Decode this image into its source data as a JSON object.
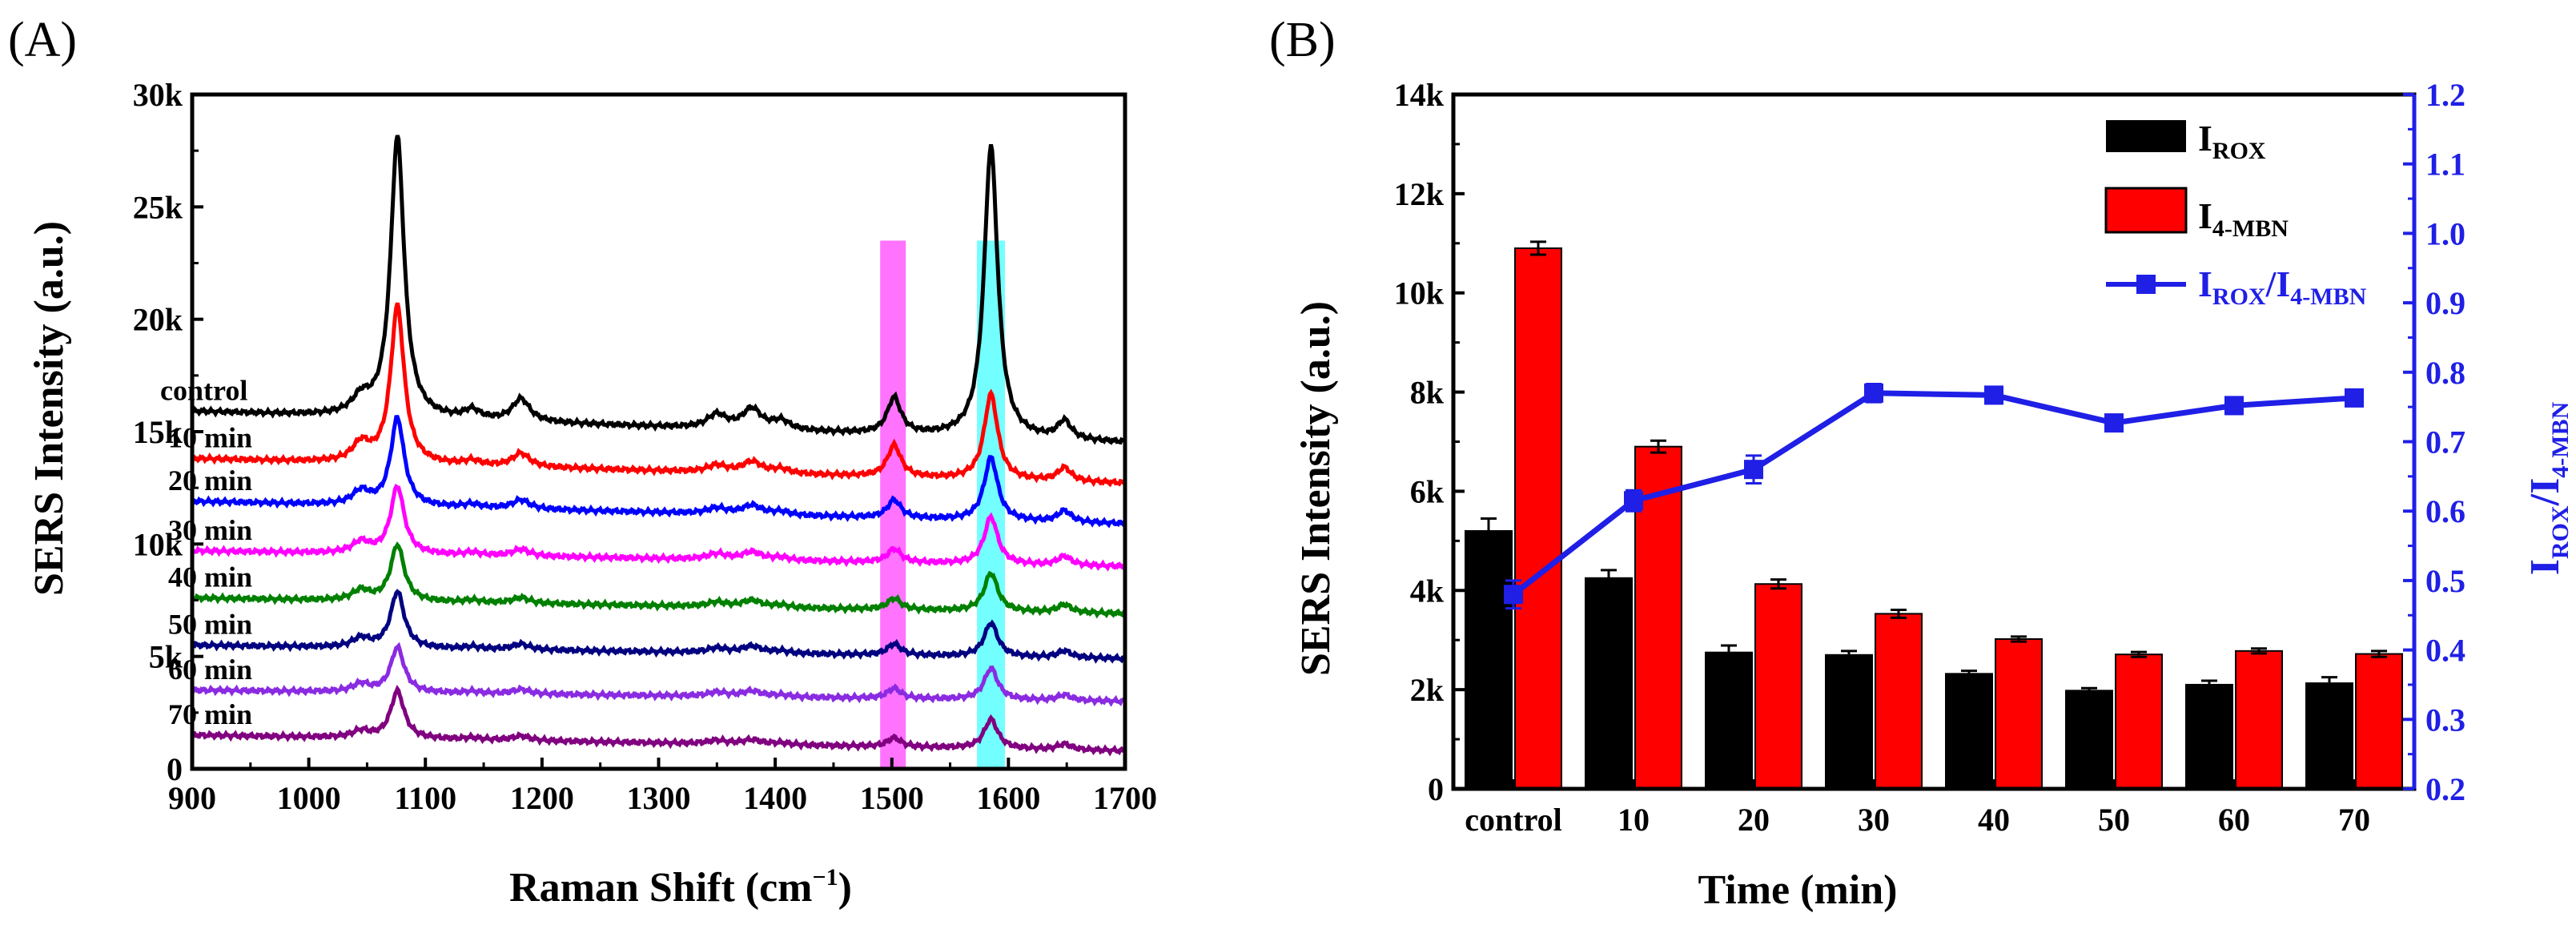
{
  "panel_a_label": "(A)",
  "panel_b_label": "(B)",
  "colors": {
    "control": "#000000",
    "10 min": "#ff0000",
    "20 min": "#0000ff",
    "30 min": "#ff00ff",
    "40 min": "#008000",
    "50 min": "#000080",
    "60 min": "#8a2be2",
    "70 min": "#800080",
    "bar_rox": "#000000",
    "bar_mbn": "#ff0000",
    "ratio_line": "#1f1fe6",
    "highlight_1500": "#ff00ff",
    "highlight_1585": "#00ffff"
  },
  "chart_data": [
    {
      "type": "line",
      "panel": "(A)",
      "xlabel": "Raman Shift (cm",
      "xlabel_sup": "−1",
      "xlabel_end": ")",
      "ylabel": "SERS Intensity (a.u.)",
      "xlim": [
        900,
        1700
      ],
      "ylim": [
        0,
        30000
      ],
      "x_ticks": [
        "900",
        "1000",
        "1100",
        "1200",
        "1300",
        "1400",
        "1500",
        "1600",
        "1700"
      ],
      "y_ticks": [
        "0",
        "5k",
        "10k",
        "15k",
        "20k",
        "25k",
        "30k"
      ],
      "highlight_bands": [
        {
          "from": 1490,
          "to": 1512,
          "color": "#ff00ff"
        },
        {
          "from": 1573,
          "to": 1597,
          "color": "#00ffff"
        }
      ],
      "peaks": [
        {
          "center": 1045,
          "width": 9
        },
        {
          "center": 1076,
          "width": 7
        },
        {
          "center": 1140,
          "width": 8
        },
        {
          "center": 1182,
          "width": 9
        },
        {
          "center": 1350,
          "width": 10
        },
        {
          "center": 1380,
          "width": 10
        },
        {
          "center": 1405,
          "width": 9
        },
        {
          "center": 1502,
          "width": 7
        },
        {
          "center": 1585,
          "width": 7
        },
        {
          "center": 1648,
          "width": 7
        }
      ],
      "series": [
        {
          "name": "control",
          "baseline_start": 15900,
          "baseline_end": 14500,
          "peak_heights": [
            700,
            12500,
            400,
            1000,
            600,
            900,
            400,
            1600,
            13000,
            800
          ]
        },
        {
          "name": "10 min",
          "baseline_start": 13800,
          "baseline_end": 12700,
          "peak_heights": [
            800,
            7000,
            200,
            600,
            300,
            500,
            200,
            1400,
            3800,
            600
          ]
        },
        {
          "name": "20 min",
          "baseline_start": 11900,
          "baseline_end": 10900,
          "peak_heights": [
            600,
            3900,
            150,
            400,
            250,
            400,
            150,
            800,
            2800,
            500
          ]
        },
        {
          "name": "30 min",
          "baseline_start": 9700,
          "baseline_end": 9000,
          "peak_heights": [
            500,
            3000,
            120,
            300,
            250,
            350,
            120,
            600,
            2100,
            400
          ]
        },
        {
          "name": "40 min",
          "baseline_start": 7600,
          "baseline_end": 6900,
          "peak_heights": [
            450,
            2500,
            100,
            250,
            200,
            300,
            100,
            500,
            1700,
            350
          ]
        },
        {
          "name": "50 min",
          "baseline_start": 5500,
          "baseline_end": 4900,
          "peak_heights": [
            400,
            2500,
            100,
            250,
            200,
            300,
            100,
            500,
            1500,
            300
          ]
        },
        {
          "name": "60 min",
          "baseline_start": 3500,
          "baseline_end": 3000,
          "peak_heights": [
            350,
            2000,
            80,
            200,
            180,
            250,
            80,
            450,
            1400,
            250
          ]
        },
        {
          "name": "70 min",
          "baseline_start": 1500,
          "baseline_end": 800,
          "peak_heights": [
            300,
            2100,
            80,
            200,
            150,
            200,
            80,
            400,
            1300,
            250
          ]
        }
      ]
    },
    {
      "type": "bar",
      "panel": "(B)",
      "categories": [
        "control",
        "10",
        "20",
        "30",
        "40",
        "50",
        "60",
        "70"
      ],
      "xlabel": "Time (min)",
      "ylabel": "SERS Intensity (a.u.)",
      "ylabel_right": "I",
      "ylabel_right_sub_rox": "ROX",
      "ylabel_right_slash": "/I",
      "ylabel_right_sub_mbn": "4-MBN",
      "ylim": [
        0,
        14000
      ],
      "ylim_right": [
        0.2,
        1.2
      ],
      "y_ticks": [
        "0",
        "2k",
        "4k",
        "6k",
        "8k",
        "10k",
        "12k",
        "14k"
      ],
      "y_ticks_right": [
        "0.2",
        "0.3",
        "0.4",
        "0.5",
        "0.6",
        "0.7",
        "0.8",
        "0.9",
        "1.0",
        "1.1",
        "1.2"
      ],
      "legend_position": "top-right",
      "legend": {
        "rox_main": "I",
        "rox_sub": "ROX",
        "mbn_main": "I",
        "mbn_sub": "4-MBN",
        "ratio_main_1": "I",
        "ratio_sub_1": "ROX",
        "ratio_main_2": "/I",
        "ratio_sub_2": "4-MBN"
      },
      "series": [
        {
          "name": "I_ROX",
          "values": [
            5200,
            4250,
            2750,
            2700,
            2320,
            1980,
            2100,
            2130
          ],
          "errors": [
            250,
            160,
            140,
            80,
            60,
            50,
            80,
            120
          ]
        },
        {
          "name": "I_4-MBN",
          "values": [
            10900,
            6900,
            4130,
            3530,
            3020,
            2710,
            2780,
            2720
          ],
          "errors": [
            130,
            120,
            90,
            80,
            50,
            50,
            50,
            60
          ]
        },
        {
          "name": "I_ROX/I_4-MBN",
          "axis": "right",
          "values": [
            0.48,
            0.615,
            0.66,
            0.77,
            0.767,
            0.727,
            0.752,
            0.763
          ],
          "errors": [
            0.02,
            0.015,
            0.02,
            0.013,
            0.008,
            0.01,
            0.012,
            0.008
          ]
        }
      ]
    }
  ]
}
